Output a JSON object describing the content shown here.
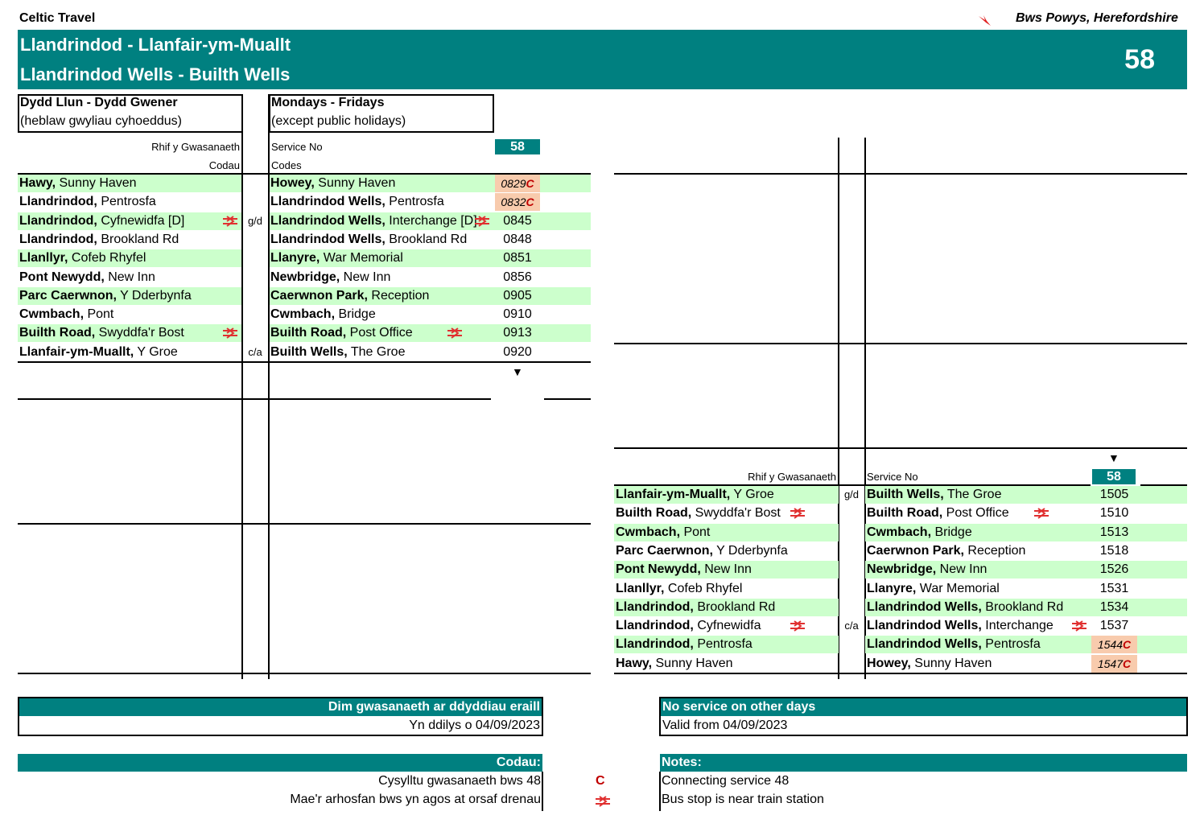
{
  "header": {
    "operator": "Celtic Travel",
    "region": "Bws Powys, Herefordshire",
    "title_cy": "Llandrindod - Llanfair-ym-Muallt",
    "title_en": "Llandrindod Wells - Builth Wells",
    "route_number": "58"
  },
  "days": {
    "cy_line1": "Dydd Llun - Dydd Gwener",
    "cy_line2": "(heblaw gwyliau cyhoeddus)",
    "en_line1": "Mondays - Fridays",
    "en_line2": "(except public holidays)"
  },
  "labels": {
    "service_no_cy": "Rhif y Gwasanaeth",
    "codes_cy": "Codau",
    "service_no_en": "Service No",
    "codes_en": "Codes",
    "service": "58",
    "down_arrow": "▼"
  },
  "outbound": [
    {
      "cy_bold": "Hawy,",
      "cy_rest": " Sunny Haven",
      "en_bold": "Howey,",
      "en_rest": " Sunny Haven",
      "time": "0829C",
      "code": "",
      "rail_cy": false,
      "rail_en": false
    },
    {
      "cy_bold": "Llandrindod,",
      "cy_rest": " Pentrosfa",
      "en_bold": "Llandrindod Wells,",
      "en_rest": " Pentrosfa",
      "time": "0832C",
      "code": "",
      "rail_cy": false,
      "rail_en": false
    },
    {
      "cy_bold": "Llandrindod,",
      "cy_rest": " Cyfnewidfa [D]",
      "en_bold": "Llandrindod Wells,",
      "en_rest": " Interchange [D]",
      "time": "0845",
      "code": "g/d",
      "rail_cy": true,
      "rail_en": true
    },
    {
      "cy_bold": "Llandrindod,",
      "cy_rest": " Brookland Rd",
      "en_bold": "Llandrindod Wells,",
      "en_rest": " Brookland Rd",
      "time": "0848",
      "code": "",
      "rail_cy": false,
      "rail_en": false
    },
    {
      "cy_bold": "Llanllyr,",
      "cy_rest": " Cofeb Rhyfel",
      "en_bold": "Llanyre,",
      "en_rest": " War Memorial",
      "time": "0851",
      "code": "",
      "rail_cy": false,
      "rail_en": false
    },
    {
      "cy_bold": "Pont Newydd,",
      "cy_rest": " New Inn",
      "en_bold": "Newbridge,",
      "en_rest": " New Inn",
      "time": "0856",
      "code": "",
      "rail_cy": false,
      "rail_en": false
    },
    {
      "cy_bold": "Parc Caerwnon,",
      "cy_rest": " Y Dderbynfa",
      "en_bold": "Caerwnon Park,",
      "en_rest": " Reception",
      "time": "0905",
      "code": "",
      "rail_cy": false,
      "rail_en": false
    },
    {
      "cy_bold": "Cwmbach,",
      "cy_rest": " Pont",
      "en_bold": "Cwmbach,",
      "en_rest": " Bridge",
      "time": "0910",
      "code": "",
      "rail_cy": false,
      "rail_en": false
    },
    {
      "cy_bold": "Builth Road,",
      "cy_rest": " Swyddfa'r Bost",
      "en_bold": "Builth Road,",
      "en_rest": " Post Office",
      "time": "0913",
      "code": "",
      "rail_cy": true,
      "rail_en": true
    },
    {
      "cy_bold": "Llanfair-ym-Muallt,",
      "cy_rest": " Y Groe",
      "en_bold": "Builth Wells,",
      "en_rest": " The Groe",
      "time": "0920",
      "code": "c/a",
      "rail_cy": false,
      "rail_en": false
    }
  ],
  "inbound": [
    {
      "cy_bold": "Llanfair-ym-Muallt,",
      "cy_rest": " Y Groe",
      "en_bold": "Builth Wells,",
      "en_rest": " The Groe",
      "time": "1505",
      "code": "g/d",
      "rail_cy": false,
      "rail_en": false
    },
    {
      "cy_bold": "Builth Road,",
      "cy_rest": " Swyddfa'r Bost",
      "en_bold": "Builth Road,",
      "en_rest": " Post Office",
      "time": "1510",
      "code": "",
      "rail_cy": true,
      "rail_en": true
    },
    {
      "cy_bold": "Cwmbach,",
      "cy_rest": " Pont",
      "en_bold": "Cwmbach,",
      "en_rest": " Bridge",
      "time": "1513",
      "code": "",
      "rail_cy": false,
      "rail_en": false
    },
    {
      "cy_bold": "Parc Caerwnon,",
      "cy_rest": " Y Dderbynfa",
      "en_bold": "Caerwnon Park,",
      "en_rest": " Reception",
      "time": "1518",
      "code": "",
      "rail_cy": false,
      "rail_en": false
    },
    {
      "cy_bold": "Pont Newydd,",
      "cy_rest": " New Inn",
      "en_bold": "Newbridge,",
      "en_rest": " New Inn",
      "time": "1526",
      "code": "",
      "rail_cy": false,
      "rail_en": false
    },
    {
      "cy_bold": "Llanllyr,",
      "cy_rest": " Cofeb Rhyfel",
      "en_bold": "Llanyre,",
      "en_rest": " War Memorial",
      "time": "1531",
      "code": "",
      "rail_cy": false,
      "rail_en": false
    },
    {
      "cy_bold": "Llandrindod,",
      "cy_rest": " Brookland Rd",
      "en_bold": "Llandrindod Wells,",
      "en_rest": " Brookland Rd",
      "time": "1534",
      "code": "",
      "rail_cy": false,
      "rail_en": false
    },
    {
      "cy_bold": "Llandrindod,",
      "cy_rest": " Cyfnewidfa",
      "en_bold": "Llandrindod Wells,",
      "en_rest": " Interchange",
      "time": "1537",
      "code": "c/a",
      "rail_cy": true,
      "rail_en": true
    },
    {
      "cy_bold": "Llandrindod,",
      "cy_rest": " Pentrosfa",
      "en_bold": "Llandrindod Wells,",
      "en_rest": " Pentrosfa",
      "time": "1544C",
      "code": "",
      "rail_cy": false,
      "rail_en": false
    },
    {
      "cy_bold": "Hawy,",
      "cy_rest": " Sunny Haven",
      "en_bold": "Howey,",
      "en_rest": " Sunny Haven",
      "time": "1547C",
      "code": "",
      "rail_cy": false,
      "rail_en": false
    }
  ],
  "footer": {
    "no_service_cy": "Dim gwasanaeth ar ddyddiau eraill",
    "valid_cy": "Yn ddilys o 04/09/2023",
    "no_service_en": "No service on other days",
    "valid_en": "Valid from 04/09/2023",
    "codes_heading_cy": "Codau:",
    "notes_heading_en": "Notes:",
    "code_c_symbol": "C",
    "code_c_cy": "Cysylltu gwasanaeth bws 48",
    "code_c_en": "Connecting service 48",
    "code_rail_cy": "Mae'r arhosfan bws yn agos at orsaf drenau",
    "code_rail_en": "Bus stop is near train station"
  },
  "colors": {
    "teal": "#008080",
    "light_green": "#ccffcc",
    "peach": "#f8cbad",
    "accent_red": "#c00000",
    "rail_red": "#e03030"
  },
  "icons": {
    "logo": "red-kite-logo",
    "rail": "national-rail-icon"
  }
}
